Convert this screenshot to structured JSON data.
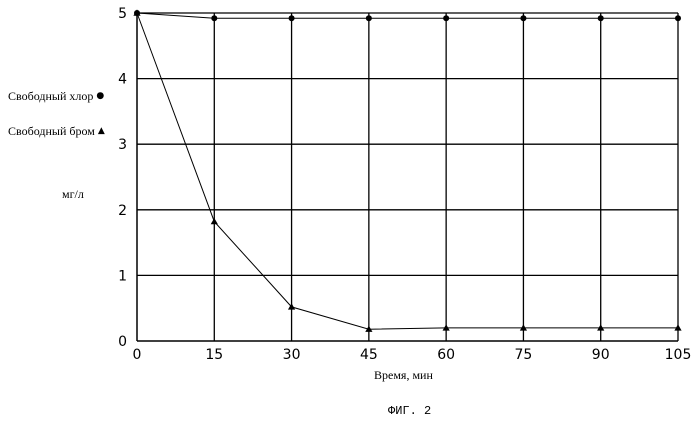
{
  "chart_data": {
    "type": "line",
    "title": "",
    "xlabel": "Время, мин",
    "ylabel": "мг/л",
    "x": [
      0,
      15,
      30,
      45,
      60,
      75,
      90,
      105
    ],
    "xlim": [
      0,
      105
    ],
    "ylim": [
      0,
      5
    ],
    "xticks": [
      "0",
      "15",
      "30",
      "45",
      "60",
      "75",
      "90",
      "105"
    ],
    "yticks": [
      "0",
      "1",
      "2",
      "3",
      "4",
      "5"
    ],
    "grid": true,
    "legend_position": "left",
    "series": [
      {
        "name": "Свободный хлор",
        "marker": "circle",
        "symbol": "●",
        "values": [
          5.0,
          4.92,
          4.92,
          4.92,
          4.92,
          4.92,
          4.92,
          4.92
        ]
      },
      {
        "name": "Свободный бром",
        "marker": "triangle",
        "symbol": "▲",
        "values": [
          5.0,
          1.82,
          0.52,
          0.18,
          0.2,
          0.2,
          0.2,
          0.2
        ]
      }
    ],
    "caption": "ФИГ. 2"
  },
  "colors": {
    "line": "#000000",
    "grid": "#000000",
    "background": "#ffffff"
  }
}
